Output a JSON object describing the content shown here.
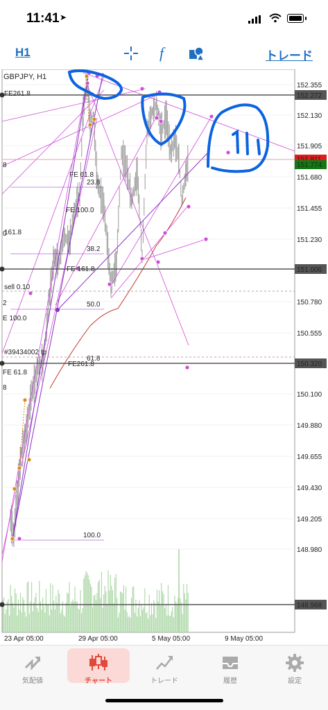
{
  "status": {
    "time": "11:41"
  },
  "toolbar": {
    "timeframe": "H1",
    "trade_label": "トレード"
  },
  "chart": {
    "symbol": "GBPJPY, H1",
    "price_labels": [
      "152.355",
      "152.130",
      "151.905",
      "151.680",
      "151.455",
      "151.230",
      "150.780",
      "150.555",
      "150.100",
      "149.880",
      "149.655",
      "149.430",
      "149.205",
      "148.980"
    ],
    "line_labels": {
      "l1": "152.272",
      "l2": "151.006",
      "l3": "150.320",
      "l4": "148.568"
    },
    "bid": "151.811",
    "ask": "151.774",
    "dates": [
      "23 Apr 05:00",
      "29 Apr 05:00",
      "5 May 05:00",
      "9 May 05:00"
    ],
    "annotations": {
      "sell": "sell 0.10",
      "tp": "#39434002 tp",
      "fib_23": "23.8",
      "fib_38": "38.2",
      "fib_50": "50.0",
      "fib_61": "61.8",
      "fib_100": "100.0",
      "fe261": "FE261.8",
      "fe618": "FE 61.8",
      "fe100": "FE 100.0",
      "fe1618": "FE 161.8",
      "fe2618": "FE261.8",
      "l_1618": "161.8",
      "l_e100": "E 100.0",
      "l_fe618": "FE 61.8",
      "l_18": "8",
      "l_0": "0",
      "l_2": "2",
      "l_8": "8"
    }
  },
  "tabs": [
    {
      "label": "気配値",
      "icon": "quotes-icon"
    },
    {
      "label": "チャート",
      "icon": "chart-icon"
    },
    {
      "label": "トレード",
      "icon": "trade-icon"
    },
    {
      "label": "履歴",
      "icon": "history-icon"
    },
    {
      "label": "設定",
      "icon": "settings-icon"
    }
  ],
  "colors": {
    "accent": "#1f6fc1",
    "active_tab": "#e04a3a",
    "bid_bg": "#e01c1c",
    "ask_bg": "#137a13",
    "fib": "#8a2fc2",
    "fe": "#d98a1a",
    "trend": "#d04bd9"
  }
}
